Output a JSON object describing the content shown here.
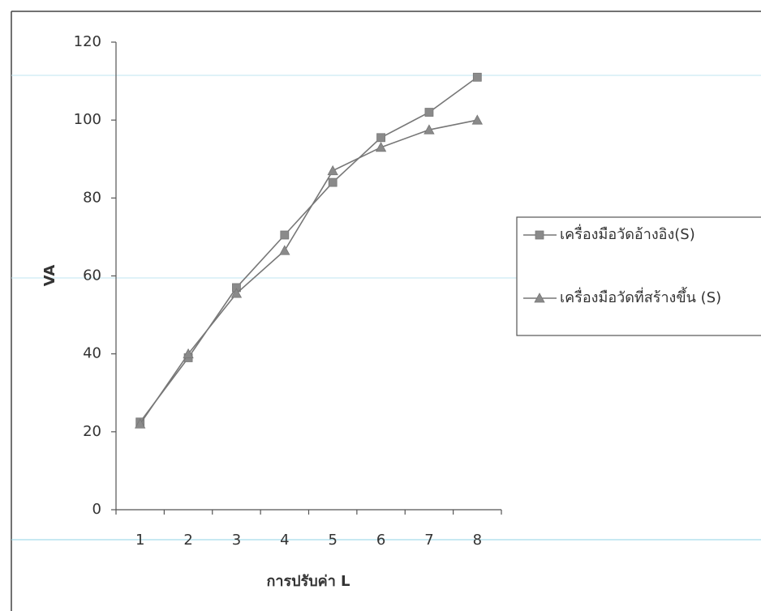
{
  "chart_data": {
    "type": "line",
    "x_label": "การปรับค่า L",
    "y_label": "VA",
    "categories": [
      "1",
      "2",
      "3",
      "4",
      "5",
      "6",
      "7",
      "8"
    ],
    "series": [
      {
        "name": "เครื่องมือวัดอ้างอิง(S)",
        "color": "#777777",
        "marker": "square",
        "values": [
          22.5,
          39,
          57,
          70.5,
          84,
          95.5,
          102,
          111
        ]
      },
      {
        "name": "เครื่องมือวัดที่สร้างขึ้น (S)",
        "color": "#777777",
        "marker": "triangle",
        "values": [
          22,
          40,
          55.5,
          66.5,
          87,
          93,
          97.5,
          100
        ]
      }
    ],
    "ylim": [
      0,
      120
    ],
    "yticks": [
      0,
      20,
      40,
      60,
      80,
      100,
      120
    ]
  }
}
